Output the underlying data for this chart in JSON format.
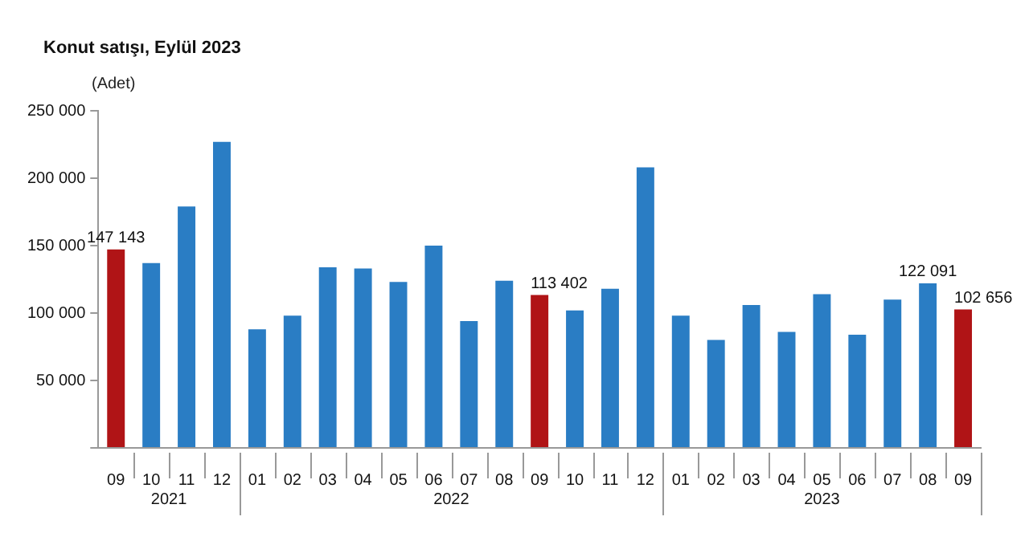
{
  "chart_data": {
    "type": "bar",
    "title": "Konut satışı, Eylül 2023",
    "ylabel": "(Adet)",
    "categories": [
      "09",
      "10",
      "11",
      "12",
      "01",
      "02",
      "03",
      "04",
      "05",
      "06",
      "07",
      "08",
      "09",
      "10",
      "11",
      "12",
      "01",
      "02",
      "03",
      "04",
      "05",
      "06",
      "07",
      "08",
      "09"
    ],
    "values": [
      147143,
      137000,
      179000,
      227000,
      88000,
      98000,
      134000,
      133000,
      123000,
      150000,
      94000,
      124000,
      113402,
      102000,
      118000,
      208000,
      98000,
      80000,
      106000,
      86000,
      114000,
      84000,
      110000,
      122091,
      102656
    ],
    "value_labels": [
      "147 143",
      null,
      null,
      null,
      null,
      null,
      null,
      null,
      null,
      null,
      null,
      null,
      "113 402",
      null,
      null,
      null,
      null,
      null,
      null,
      null,
      null,
      null,
      null,
      "122 091",
      "102 656"
    ],
    "colors": [
      "#b01416",
      "#2a7dc4",
      "#2a7dc4",
      "#2a7dc4",
      "#2a7dc4",
      "#2a7dc4",
      "#2a7dc4",
      "#2a7dc4",
      "#2a7dc4",
      "#2a7dc4",
      "#2a7dc4",
      "#2a7dc4",
      "#b01416",
      "#2a7dc4",
      "#2a7dc4",
      "#2a7dc4",
      "#2a7dc4",
      "#2a7dc4",
      "#2a7dc4",
      "#2a7dc4",
      "#2a7dc4",
      "#2a7dc4",
      "#2a7dc4",
      "#2a7dc4",
      "#b01416"
    ],
    "ylim": [
      0,
      250000
    ],
    "yticks": [
      {
        "value": 0,
        "label": null
      },
      {
        "value": 50000,
        "label": "50 000"
      },
      {
        "value": 100000,
        "label": "100 000"
      },
      {
        "value": 150000,
        "label": "150 000"
      },
      {
        "value": 200000,
        "label": "200 000"
      },
      {
        "value": 250000,
        "label": "250 000"
      }
    ],
    "annotations": [
      "2021",
      "2022",
      "2023"
    ],
    "grid": false,
    "legend": false
  }
}
